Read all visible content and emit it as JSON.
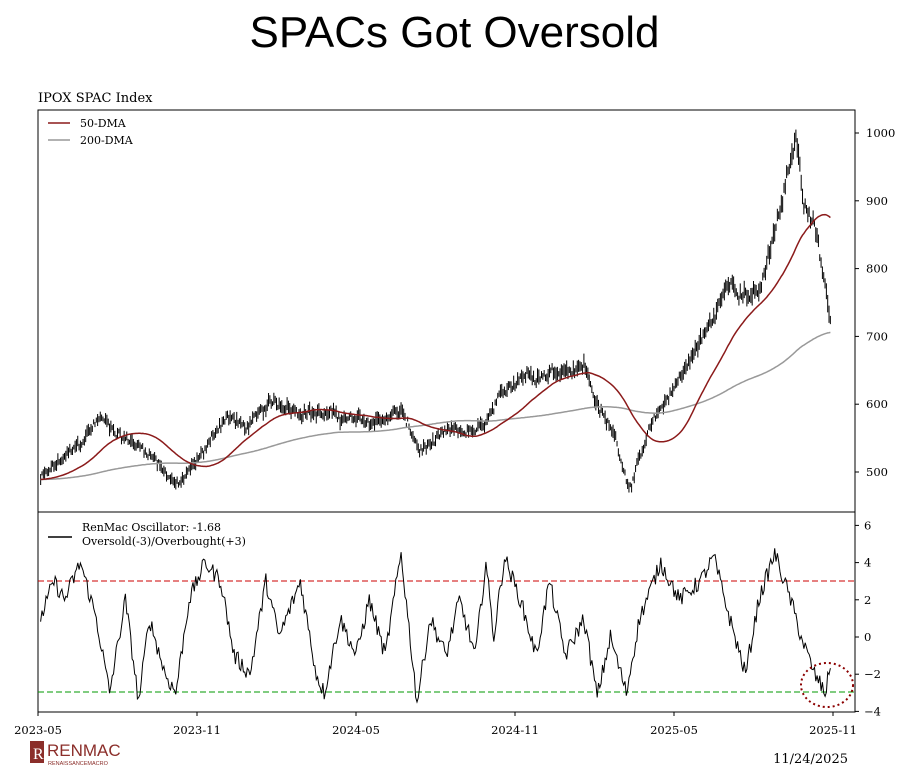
{
  "title": "SPACs Got Oversold",
  "date": "11/24/2025",
  "logo": {
    "name": "RENMAC",
    "sub": "RENAISSANCEMACRO"
  },
  "chart_data": [
    {
      "type": "line",
      "title": "IPOX SPAC Index",
      "x_unit": "months since 2023-05",
      "legend": [
        "50-DMA",
        "200-DMA"
      ],
      "legend_position": "top-left",
      "ylim": [
        450,
        1030
      ],
      "yticks": [
        "500",
        "600",
        "700",
        "800",
        "900",
        "1000"
      ],
      "price_points": [
        [
          0.1,
          490
        ],
        [
          1.6,
          540
        ],
        [
          2.3,
          580
        ],
        [
          3.5,
          545
        ],
        [
          4.2,
          530
        ],
        [
          5.3,
          480
        ],
        [
          6.1,
          520
        ],
        [
          7.1,
          585
        ],
        [
          7.8,
          565
        ],
        [
          8.9,
          600
        ],
        [
          9.9,
          595
        ],
        [
          11.0,
          585
        ],
        [
          12.5,
          570
        ],
        [
          13.7,
          590
        ],
        [
          14.4,
          530
        ],
        [
          15.5,
          555
        ],
        [
          16.7,
          560
        ],
        [
          17.4,
          600
        ],
        [
          18.2,
          645
        ],
        [
          19.3,
          650
        ],
        [
          20.6,
          660
        ],
        [
          21.2,
          590
        ],
        [
          21.8,
          550
        ],
        [
          22.3,
          480
        ],
        [
          23.1,
          560
        ],
        [
          24.2,
          640
        ],
        [
          25.4,
          720
        ],
        [
          26.1,
          780
        ],
        [
          27.2,
          760
        ],
        [
          28.0,
          880
        ],
        [
          28.6,
          990
        ],
        [
          28.9,
          900
        ],
        [
          29.3,
          870
        ],
        [
          29.7,
          780
        ],
        [
          29.9,
          730
        ]
      ],
      "colors": {
        "price": "#000000",
        "dma50": "#8b1a1a",
        "dma200": "#999999"
      }
    },
    {
      "type": "line",
      "legend": [
        "RenMac Oscillator: -1.68",
        "Oversold(-3)/Overbought(+3)"
      ],
      "legend_position": "top-left",
      "ylim": [
        -4.2,
        6.5
      ],
      "yticks": [
        "6",
        "4",
        "2",
        "0",
        "−2",
        "−4"
      ],
      "overbought": 3,
      "oversold": -3,
      "current": -1.68,
      "xticks": [
        "2023-05",
        "2023-11",
        "2024-05",
        "2024-11",
        "2025-05",
        "2025-11"
      ],
      "osc_points": [
        [
          0.1,
          1
        ],
        [
          0.6,
          3
        ],
        [
          1.0,
          2
        ],
        [
          1.6,
          4
        ],
        [
          2.2,
          1
        ],
        [
          2.7,
          -3
        ],
        [
          3.3,
          2
        ],
        [
          3.8,
          -3.5
        ],
        [
          4.2,
          1
        ],
        [
          4.8,
          -2
        ],
        [
          5.2,
          -3
        ],
        [
          5.7,
          2
        ],
        [
          6.3,
          4
        ],
        [
          6.9,
          3
        ],
        [
          7.4,
          -1
        ],
        [
          8.0,
          -2
        ],
        [
          8.6,
          3
        ],
        [
          9.1,
          0
        ],
        [
          9.9,
          3
        ],
        [
          10.5,
          -2
        ],
        [
          10.8,
          -3
        ],
        [
          11.4,
          1
        ],
        [
          12.0,
          -1
        ],
        [
          12.5,
          2
        ],
        [
          13.1,
          -1
        ],
        [
          13.7,
          4.5
        ],
        [
          14.3,
          -3.5
        ],
        [
          14.8,
          1
        ],
        [
          15.4,
          -1
        ],
        [
          15.9,
          2
        ],
        [
          16.5,
          -1
        ],
        [
          16.9,
          4
        ],
        [
          17.2,
          0
        ],
        [
          17.6,
          4.3
        ],
        [
          18.2,
          2
        ],
        [
          18.8,
          -1
        ],
        [
          19.3,
          3
        ],
        [
          19.9,
          -1
        ],
        [
          20.6,
          1
        ],
        [
          21.1,
          -3.2
        ],
        [
          21.6,
          0
        ],
        [
          22.2,
          -3
        ],
        [
          22.7,
          1
        ],
        [
          23.5,
          4
        ],
        [
          24.2,
          2
        ],
        [
          25.0,
          3
        ],
        [
          25.5,
          4.3
        ],
        [
          26.1,
          1
        ],
        [
          26.7,
          -2
        ],
        [
          27.2,
          2
        ],
        [
          27.8,
          4.5
        ],
        [
          28.4,
          2
        ],
        [
          28.8,
          0
        ],
        [
          29.3,
          -2
        ],
        [
          29.7,
          -3
        ],
        [
          29.9,
          -1.68
        ]
      ],
      "colors": {
        "osc": "#000000",
        "overbought": "#cc0000",
        "oversold": "#009900",
        "highlight": "#8b0000"
      }
    }
  ]
}
